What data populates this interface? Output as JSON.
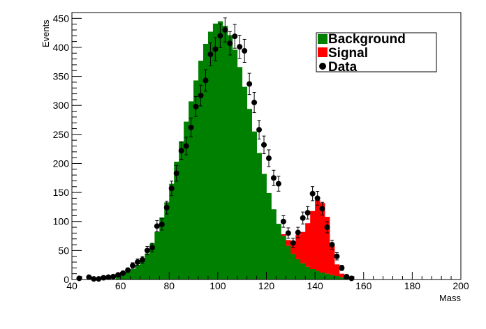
{
  "chart_data": {
    "type": "bar",
    "title": "",
    "xlabel": "Mass",
    "ylabel": "Events",
    "xlim": [
      40,
      200
    ],
    "ylim": [
      0,
      460
    ],
    "bin_width": 2,
    "x_ticks": [
      40,
      60,
      80,
      100,
      120,
      140,
      160,
      180,
      200
    ],
    "y_ticks": [
      0,
      50,
      100,
      150,
      200,
      250,
      300,
      350,
      400,
      450
    ],
    "grid": false,
    "stacked": true,
    "legend_position": "top-right",
    "colors": {
      "Background": "#008000",
      "Signal": "#ff0000",
      "Data": "#000000"
    },
    "series": [
      {
        "name": "Background",
        "style": "filled-histogram",
        "x": [
          58,
          60,
          62,
          64,
          66,
          68,
          70,
          72,
          74,
          76,
          78,
          80,
          82,
          84,
          86,
          88,
          90,
          92,
          94,
          96,
          98,
          100,
          102,
          104,
          106,
          108,
          110,
          112,
          114,
          116,
          118,
          120,
          122,
          124,
          126,
          128,
          130,
          132,
          134,
          136,
          138,
          140,
          142,
          144,
          146,
          148,
          150,
          152
        ],
        "values": [
          4,
          8,
          13,
          18,
          25,
          33,
          45,
          62,
          82,
          107,
          133,
          165,
          203,
          238,
          272,
          307,
          343,
          377,
          406,
          427,
          441,
          445,
          437,
          421,
          396,
          366,
          332,
          294,
          255,
          218,
          182,
          149,
          121,
          96,
          75,
          58,
          44,
          35,
          28,
          22,
          18,
          15,
          12,
          10,
          8,
          6,
          4,
          3
        ]
      },
      {
        "name": "Signal",
        "style": "filled-histogram-stacked",
        "x": [
          126,
          128,
          130,
          132,
          134,
          136,
          138,
          140,
          142,
          144,
          146,
          148,
          150
        ],
        "values": [
          3,
          10,
          22,
          42,
          54,
          75,
          100,
          122,
          120,
          98,
          50,
          20,
          6
        ]
      },
      {
        "name": "Data",
        "style": "points-with-errors",
        "x": [
          43,
          47,
          49,
          51,
          53,
          55,
          57,
          59,
          61,
          63,
          65,
          67,
          69,
          71,
          73,
          75,
          77,
          79,
          81,
          83,
          85,
          87,
          89,
          91,
          93,
          95,
          97,
          99,
          101,
          103,
          105,
          107,
          109,
          111,
          113,
          115,
          117,
          119,
          121,
          123,
          125,
          127,
          129,
          131,
          133,
          135,
          137,
          139,
          141,
          143,
          145,
          147,
          149,
          151,
          153,
          155
        ],
        "values": [
          2,
          4,
          1,
          1,
          3,
          4,
          5,
          8,
          11,
          16,
          24,
          30,
          34,
          50,
          55,
          92,
          95,
          124,
          157,
          183,
          222,
          230,
          262,
          298,
          317,
          343,
          388,
          397,
          420,
          430,
          407,
          419,
          401,
          394,
          337,
          305,
          258,
          232,
          209,
          175,
          165,
          100,
          80,
          63,
          81,
          106,
          115,
          148,
          140,
          122,
          90,
          60,
          40,
          20,
          5,
          2
        ]
      }
    ]
  }
}
